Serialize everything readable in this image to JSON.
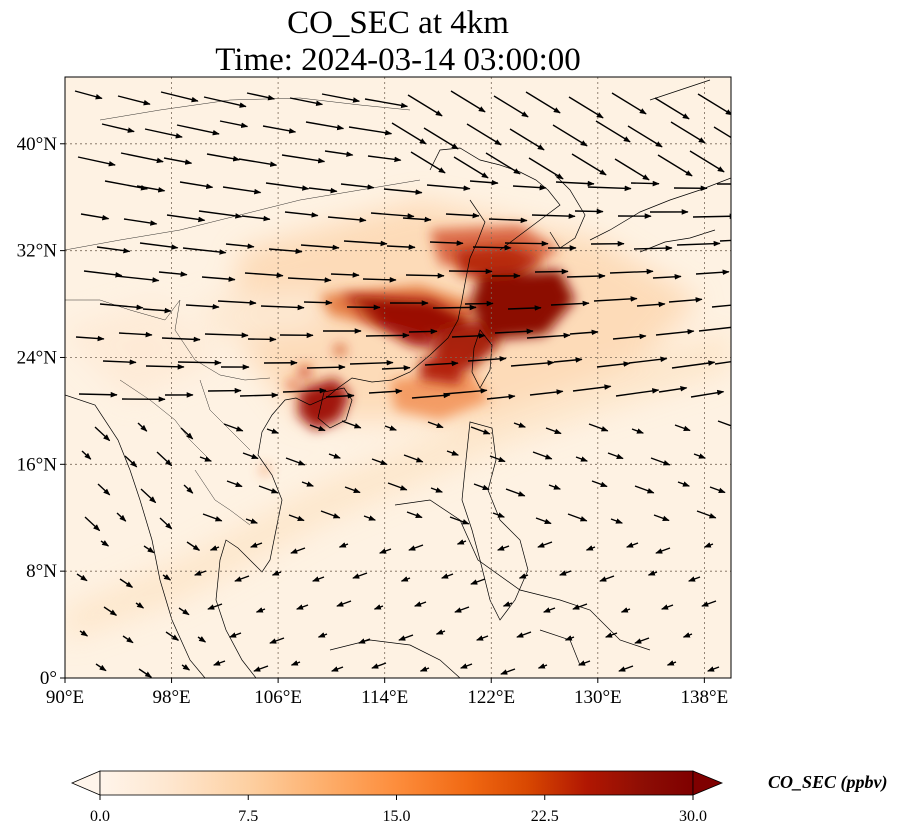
{
  "title_line1": "CO_SEC at 4km",
  "title_line2": "Time: 2024-03-14 03:00:00",
  "map": {
    "lon_range": [
      90,
      140
    ],
    "lat_range": [
      0,
      45
    ],
    "x_ticks": [
      "90°E",
      "98°E",
      "106°E",
      "114°E",
      "122°E",
      "130°E",
      "138°E"
    ],
    "x_tick_values": [
      90,
      98,
      106,
      114,
      122,
      130,
      138
    ],
    "y_ticks": [
      "0°",
      "8°N",
      "16°N",
      "24°N",
      "32°N",
      "40°N"
    ],
    "y_tick_values": [
      0,
      8,
      16,
      24,
      32,
      40
    ],
    "gridlines": true,
    "field": "CO_SEC",
    "overlay": "wind vectors"
  },
  "colorbar": {
    "label": "CO_SEC (ppbv)",
    "ticks": [
      "0.0",
      "7.5",
      "15.0",
      "22.5",
      "30.0"
    ],
    "tick_values": [
      0,
      7.5,
      15,
      22.5,
      30
    ],
    "min": 0,
    "max": 30,
    "extend": "both",
    "colormap": [
      "#fff5eb",
      "#fee6ce",
      "#fdd0a2",
      "#fdae6b",
      "#fd8d3c",
      "#f16913",
      "#d94801",
      "#b11702",
      "#8c0d04",
      "#7f0000"
    ]
  }
}
